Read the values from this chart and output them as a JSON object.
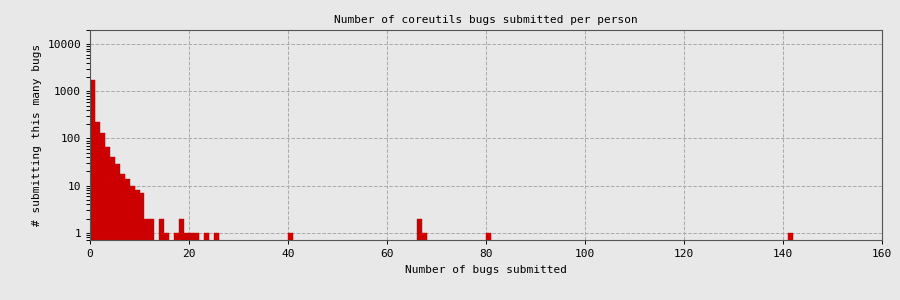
{
  "title": "Number of coreutils bugs submitted per person",
  "xlabel": "Number of bugs submitted",
  "ylabel": "# submitting this many bugs",
  "xlim": [
    0,
    160
  ],
  "ylim": [
    0.7,
    20000
  ],
  "xticks": [
    0,
    20,
    40,
    60,
    80,
    100,
    120,
    140,
    160
  ],
  "yticks": [
    1,
    10,
    100,
    1000,
    10000
  ],
  "bar_color": "#cc0000",
  "background_color": "#e8e8e8",
  "grid_color": "#aaaaaa",
  "bin_edges": [
    0,
    1,
    2,
    3,
    4,
    5,
    6,
    7,
    8,
    9,
    10,
    11,
    12,
    13,
    14,
    15,
    16,
    17,
    18,
    19,
    20,
    21,
    22,
    23,
    24,
    25,
    26,
    27,
    28,
    29,
    30,
    31,
    32,
    33,
    34,
    35,
    36,
    37,
    38,
    39,
    40,
    41,
    42,
    43,
    44,
    45,
    46,
    47,
    48,
    49,
    50,
    51,
    52,
    53,
    54,
    55,
    56,
    57,
    58,
    59,
    60,
    61,
    62,
    63,
    64,
    65,
    66,
    67,
    68,
    69,
    70,
    71,
    72,
    73,
    74,
    75,
    76,
    77,
    78,
    79,
    80,
    81,
    82,
    83,
    84,
    85,
    86,
    87,
    88,
    89,
    90,
    91,
    92,
    93,
    94,
    95,
    96,
    97,
    98,
    99,
    100,
    101,
    102,
    103,
    104,
    105,
    106,
    107,
    108,
    109,
    110,
    111,
    112,
    113,
    114,
    115,
    116,
    117,
    118,
    119,
    120,
    121,
    122,
    123,
    124,
    125,
    126,
    127,
    128,
    129,
    130,
    131,
    132,
    133,
    134,
    135,
    136,
    137,
    138,
    139,
    140,
    141,
    142,
    143,
    144,
    145,
    146,
    147,
    148,
    149,
    150,
    151,
    152,
    153,
    154,
    155,
    156,
    157,
    158,
    159,
    160
  ],
  "counts": [
    1700,
    220,
    130,
    65,
    40,
    28,
    18,
    14,
    10,
    8,
    7,
    2,
    2,
    0,
    2,
    1,
    0,
    1,
    2,
    1,
    1,
    1,
    0,
    1,
    0,
    1,
    0,
    0,
    0,
    0,
    0,
    0,
    0,
    0,
    0,
    0,
    0,
    0,
    0,
    0,
    1,
    0,
    0,
    0,
    0,
    0,
    0,
    0,
    0,
    0,
    0,
    0,
    0,
    0,
    0,
    0,
    0,
    0,
    0,
    0,
    0,
    0,
    0,
    0,
    0,
    0,
    2,
    1,
    0,
    0,
    0,
    0,
    0,
    0,
    0,
    0,
    0,
    0,
    0,
    0,
    1,
    0,
    0,
    0,
    0,
    0,
    0,
    0,
    0,
    0,
    0,
    0,
    0,
    0,
    0,
    0,
    0,
    0,
    0,
    0,
    0,
    0,
    0,
    0,
    0,
    0,
    0,
    0,
    0,
    0,
    0,
    0,
    0,
    0,
    0,
    0,
    0,
    0,
    0,
    0,
    0,
    0,
    0,
    0,
    0,
    0,
    0,
    0,
    0,
    0,
    0,
    0,
    0,
    0,
    0,
    0,
    0,
    0,
    0,
    0,
    0,
    1,
    0,
    0,
    0,
    0,
    0,
    0,
    0,
    0,
    0,
    0,
    0,
    0,
    0,
    0,
    0,
    0,
    0,
    0
  ]
}
